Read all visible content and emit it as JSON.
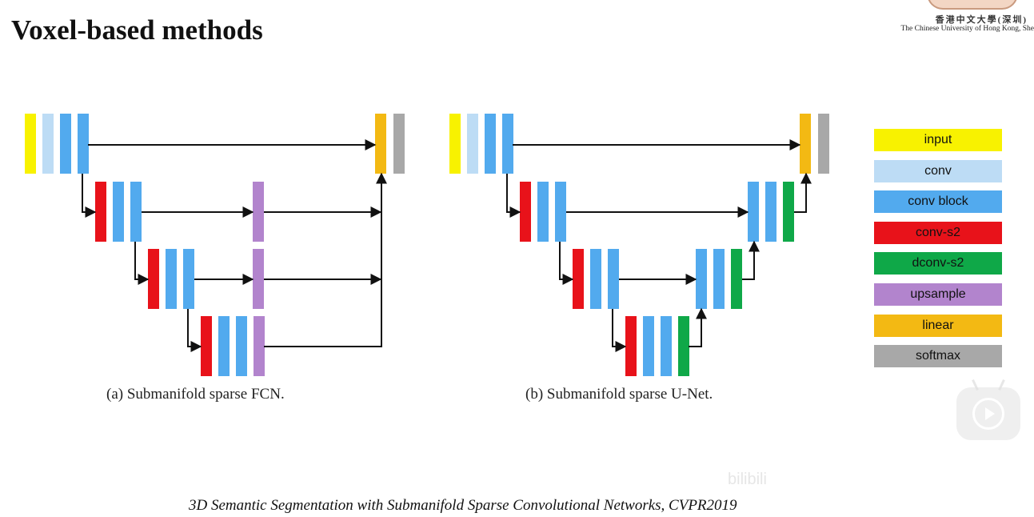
{
  "header": {
    "title": "Voxel-based methods"
  },
  "logo": {
    "chinese": "香港中文大學(深圳)",
    "english": "The Chinese University of Hong Kong, She"
  },
  "colors": {
    "input": "#f8f200",
    "conv": "#bddcf5",
    "conv_block": "#52aaee",
    "conv_s2": "#e8121a",
    "dconv_s2": "#0fa848",
    "upsample": "#b284cd",
    "linear": "#f3b913",
    "softmax": "#a8a8a8"
  },
  "legend": [
    {
      "key": "input",
      "label": "input"
    },
    {
      "key": "conv",
      "label": "conv"
    },
    {
      "key": "conv_block",
      "label": "conv block"
    },
    {
      "key": "conv_s2",
      "label": "conv-s2"
    },
    {
      "key": "dconv_s2",
      "label": "dconv-s2"
    },
    {
      "key": "upsample",
      "label": "upsample"
    },
    {
      "key": "linear",
      "label": "linear"
    },
    {
      "key": "softmax",
      "label": "softmax"
    }
  ],
  "diagrams": {
    "fcn": {
      "caption": "(a) Submanifold sparse FCN.",
      "levels": [
        [
          "input",
          "conv",
          "conv_block",
          "conv_block"
        ],
        [
          "conv_s2",
          "conv_block",
          "conv_block"
        ],
        [
          "conv_s2",
          "conv_block",
          "conv_block"
        ],
        [
          "conv_s2",
          "conv_block",
          "conv_block",
          "upsample"
        ]
      ],
      "level_outputs": [
        null,
        "upsample",
        "upsample",
        null
      ],
      "head": [
        "linear",
        "softmax"
      ]
    },
    "unet": {
      "caption": "(b) Submanifold sparse U-Net.",
      "levels": [
        [
          "input",
          "conv",
          "conv_block",
          "conv_block"
        ],
        [
          "conv_s2",
          "conv_block",
          "conv_block"
        ],
        [
          "conv_s2",
          "conv_block",
          "conv_block"
        ],
        [
          "conv_s2",
          "conv_block",
          "conv_block",
          "dconv_s2"
        ]
      ],
      "decoder": [
        null,
        [
          "conv_block",
          "conv_block",
          "dconv_s2"
        ],
        [
          "conv_block",
          "conv_block",
          "dconv_s2"
        ],
        null
      ],
      "head": [
        "linear",
        "softmax"
      ]
    }
  },
  "footer": {
    "citation": "3D Semantic Segmentation with Submanifold Sparse Convolutional Networks, CVPR2019"
  },
  "watermark": {
    "text": "bilibili"
  }
}
